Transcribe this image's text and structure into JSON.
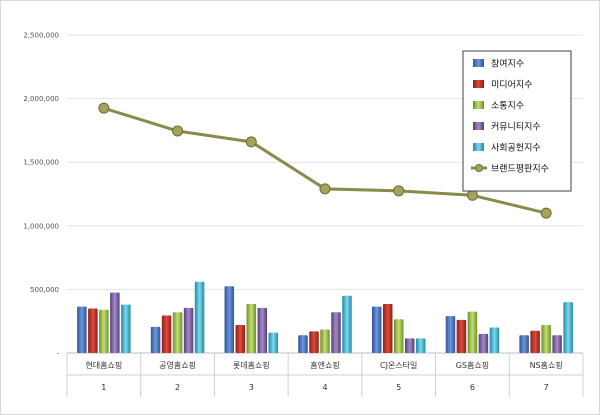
{
  "chart_data": {
    "type": "bar",
    "categories": [
      "현대홈쇼핑",
      "공영홈쇼핑",
      "롯데홈쇼핑",
      "홈앤쇼핑",
      "CJ온스타일",
      "GS홈쇼핑",
      "NS홈쇼핑"
    ],
    "ranks": [
      "1",
      "2",
      "3",
      "4",
      "5",
      "6",
      "7"
    ],
    "y_ticks": [
      "-",
      "500,000",
      "1,000,000",
      "1,500,000",
      "2,000,000",
      "2,500,000"
    ],
    "ylim": [
      0,
      2500000
    ],
    "grid": true,
    "legend_position": "top-right",
    "series": [
      {
        "name": "참여지수",
        "type": "bar",
        "color": "#4472c4",
        "values": [
          365000,
          205000,
          525000,
          140000,
          365000,
          290000,
          140000
        ]
      },
      {
        "name": "미디어지수",
        "type": "bar",
        "color": "#c0392b",
        "values": [
          350000,
          295000,
          220000,
          170000,
          385000,
          260000,
          175000
        ]
      },
      {
        "name": "소통지수",
        "type": "bar",
        "color": "#9bbb59",
        "values": [
          340000,
          320000,
          385000,
          185000,
          265000,
          325000,
          220000
        ]
      },
      {
        "name": "커뮤니티지수",
        "type": "bar",
        "color": "#8064a2",
        "values": [
          475000,
          355000,
          355000,
          320000,
          115000,
          150000,
          140000
        ]
      },
      {
        "name": "사회공헌지수",
        "type": "bar",
        "color": "#4bacc6",
        "values": [
          380000,
          560000,
          160000,
          450000,
          115000,
          200000,
          400000
        ]
      },
      {
        "name": "브랜드평판지수",
        "type": "line",
        "color": "#8a8a4a",
        "values": [
          1925000,
          1745000,
          1660000,
          1290000,
          1275000,
          1240000,
          1100000
        ]
      }
    ]
  }
}
